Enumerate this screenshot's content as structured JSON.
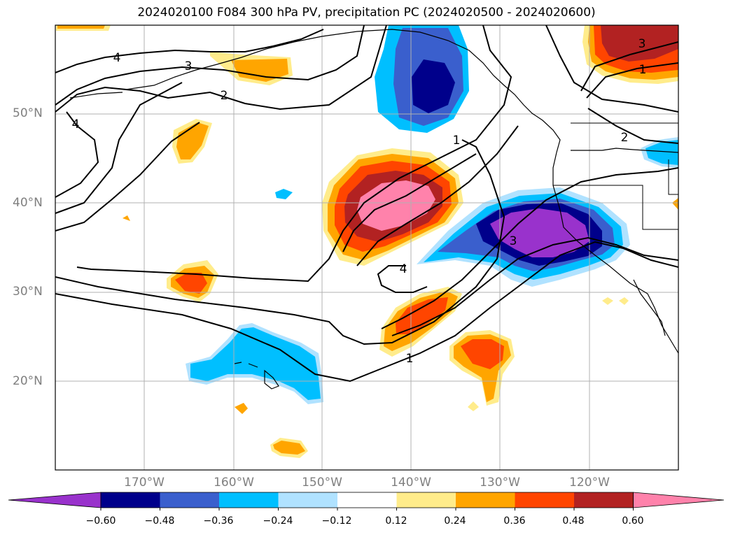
{
  "title": "2024020100 F084 300 hPa PV, precipitation PC (2024020500 - 2024020600)",
  "latitude_labels": [
    "50°N",
    "40°N",
    "30°N",
    "20°N"
  ],
  "longitude_labels": [
    "170°W",
    "160°W",
    "150°W",
    "140°W",
    "130°W",
    "120°W"
  ],
  "contour_labels": [
    "4",
    "3",
    "2",
    "4",
    "1",
    "2",
    "3",
    "4",
    "1",
    "3",
    "1"
  ],
  "colorbar": {
    "ticks": [
      "−0.60",
      "−0.48",
      "−0.36",
      "−0.24",
      "−0.12",
      "0.12",
      "0.24",
      "0.36",
      "0.48",
      "0.60"
    ],
    "colors": [
      "#9932cc",
      "#00008b",
      "#3a5fcd",
      "#00bfff",
      "#b0e2ff",
      "#ffffff",
      "#ffec8b",
      "#ffa500",
      "#ff4500",
      "#b22222",
      "#ff82ab"
    ]
  }
}
